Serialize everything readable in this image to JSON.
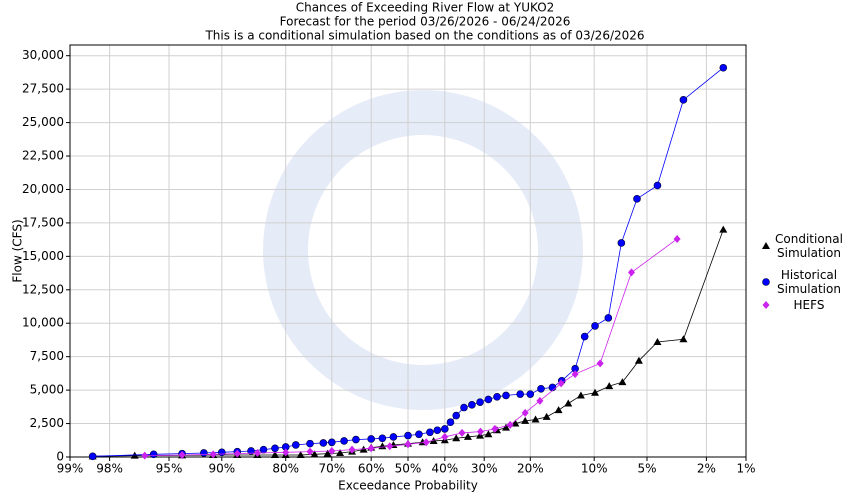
{
  "chart_data": {
    "type": "line",
    "title": "Chances of Exceeding River Flow at YUKO2",
    "subtitle": "Forecast for the period 03/26/2026 - 06/24/2026",
    "subtitle2": "This is a conditional simulation based on the conditions as of 03/26/2026",
    "x_label": "Exceedance Probability",
    "y_label": "Flow (CFS)",
    "x_scale": "probability",
    "grid": true,
    "legend": "right",
    "xlim": [
      99,
      1
    ],
    "ylim": [
      0,
      30800
    ],
    "xticks": [
      {
        "value": 99,
        "label": "99%"
      },
      {
        "value": 98,
        "label": "98%"
      },
      {
        "value": 95,
        "label": "95%"
      },
      {
        "value": 90,
        "label": "90%"
      },
      {
        "value": 80,
        "label": "80%"
      },
      {
        "value": 70,
        "label": "70%"
      },
      {
        "value": 60,
        "label": "60%"
      },
      {
        "value": 50,
        "label": "50%"
      },
      {
        "value": 40,
        "label": "40%"
      },
      {
        "value": 30,
        "label": "30%"
      },
      {
        "value": 20,
        "label": "20%"
      },
      {
        "value": 10,
        "label": "10%"
      },
      {
        "value": 5,
        "label": "5%"
      },
      {
        "value": 2,
        "label": "2%"
      },
      {
        "value": 1,
        "label": "1%"
      }
    ],
    "yticks": [
      0,
      {
        "value": 2500,
        "label": "2,500"
      },
      {
        "value": 5000,
        "label": "5,000"
      },
      {
        "value": 7500,
        "label": "7,500"
      },
      {
        "value": 10000,
        "label": "10,000"
      },
      {
        "value": 12500,
        "label": "12,500"
      },
      {
        "value": 15000,
        "label": "15,000"
      },
      {
        "value": 17500,
        "label": "17,500"
      },
      {
        "value": 20000,
        "label": "20,000"
      },
      {
        "value": 22500,
        "label": "22,500"
      },
      {
        "value": 25000,
        "label": "25,000"
      },
      {
        "value": 27500,
        "label": "27,500"
      },
      {
        "value": 30000,
        "label": "30,000"
      }
    ],
    "series": [
      {
        "name": "Conditional Simulation",
        "color": "#000000",
        "marker": "triangle",
        "x": [
          98.5,
          97,
          94,
          91,
          88,
          85,
          82,
          80,
          77,
          74,
          71,
          68,
          65,
          62,
          60,
          57,
          54,
          50,
          46,
          43,
          40,
          37,
          34,
          31,
          29,
          27,
          25,
          23,
          21,
          19,
          17,
          15,
          13.5,
          11.7,
          9.9,
          8.3,
          7,
          5.6,
          4.3,
          2.9,
          1.5
        ],
        "values": [
          50,
          100,
          120,
          150,
          150,
          150,
          150,
          150,
          150,
          200,
          250,
          300,
          400,
          550,
          700,
          800,
          900,
          1000,
          1100,
          1200,
          1250,
          1400,
          1500,
          1600,
          1700,
          2000,
          2200,
          2500,
          2700,
          2800,
          3000,
          3500,
          4000,
          4600,
          4800,
          5300,
          5600,
          7200,
          8600,
          8800,
          17000
        ]
      },
      {
        "name": "Historical Simulation",
        "color": "#0000ff",
        "marker": "circle",
        "x": [
          98.5,
          96,
          94,
          92,
          90,
          88,
          86,
          84,
          82,
          80,
          78,
          75,
          72,
          70,
          67,
          64,
          60,
          57,
          54,
          50,
          47,
          44,
          42,
          40,
          38.5,
          37,
          35,
          33,
          31,
          29,
          27,
          25,
          22,
          20,
          18,
          16,
          14.5,
          12.5,
          11.2,
          9.9,
          8.4,
          7.1,
          5.75,
          4.3,
          2.9,
          1.5
        ],
        "values": [
          50,
          200,
          250,
          300,
          350,
          400,
          450,
          550,
          650,
          750,
          900,
          1000,
          1050,
          1100,
          1200,
          1300,
          1350,
          1400,
          1500,
          1600,
          1700,
          1850,
          2000,
          2100,
          2600,
          3100,
          3700,
          3900,
          4100,
          4300,
          4500,
          4600,
          4700,
          4700,
          5100,
          5200,
          5700,
          6600,
          9000,
          9800,
          10400,
          16000,
          19300,
          20300,
          26700,
          29100
        ]
      },
      {
        "name": "HEFS",
        "color": "#cc22ee",
        "marker": "diamond",
        "x": [
          96.5,
          94,
          91,
          88,
          85,
          80,
          75,
          70,
          65,
          60,
          55,
          50,
          45,
          40,
          35.5,
          30.9,
          27.5,
          24.1,
          21,
          18.2,
          14.6,
          12.5,
          9.3,
          6.2,
          3.2
        ],
        "values": [
          100,
          150,
          200,
          250,
          300,
          350,
          400,
          450,
          550,
          650,
          800,
          950,
          1100,
          1500,
          1800,
          1900,
          2100,
          2400,
          3300,
          4200,
          5500,
          6200,
          7000,
          13800,
          16300
        ]
      }
    ]
  }
}
